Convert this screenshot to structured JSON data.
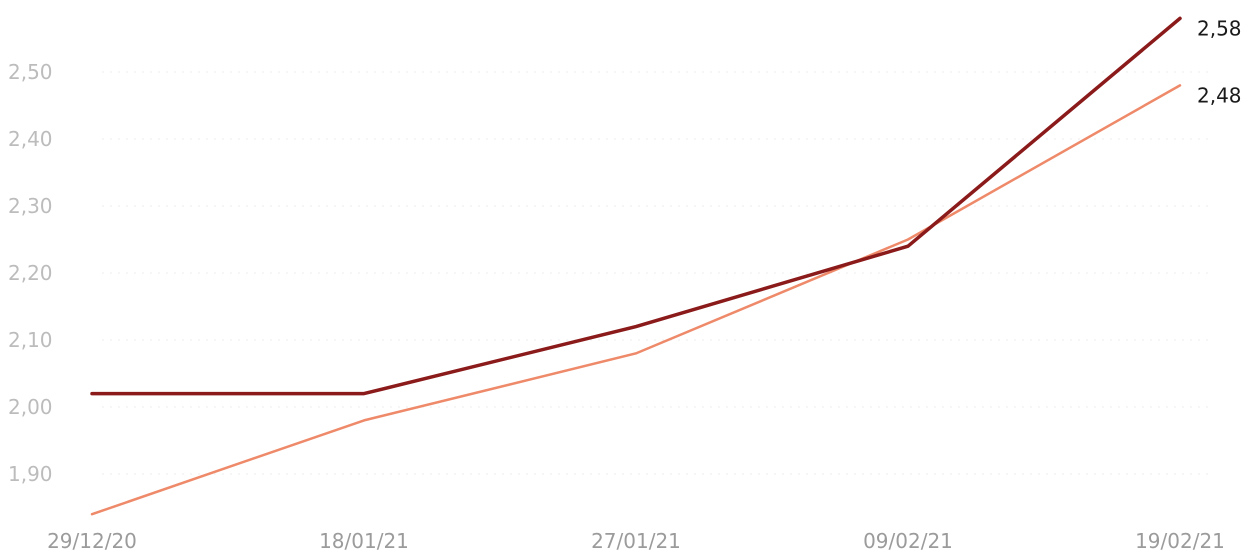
{
  "chart_data": {
    "type": "line",
    "title": "",
    "xlabel": "",
    "ylabel": "",
    "categories": [
      "29/12/20",
      "18/01/21",
      "27/01/21",
      "09/02/21",
      "19/02/21"
    ],
    "y_ticks": [
      "1,90",
      "2,00",
      "2,10",
      "2,20",
      "2,30",
      "2,40",
      "2,50"
    ],
    "ylim": [
      1.83,
      2.6
    ],
    "grid": true,
    "legend": "none",
    "series": [
      {
        "values": [
          2.02,
          2.02,
          2.12,
          2.24,
          2.58
        ],
        "color": "#8b1a1a",
        "end_label": "2,58"
      },
      {
        "values": [
          1.84,
          1.98,
          2.08,
          2.25,
          2.48
        ],
        "color": "#ee8a6a",
        "end_label": "2,48"
      }
    ]
  }
}
